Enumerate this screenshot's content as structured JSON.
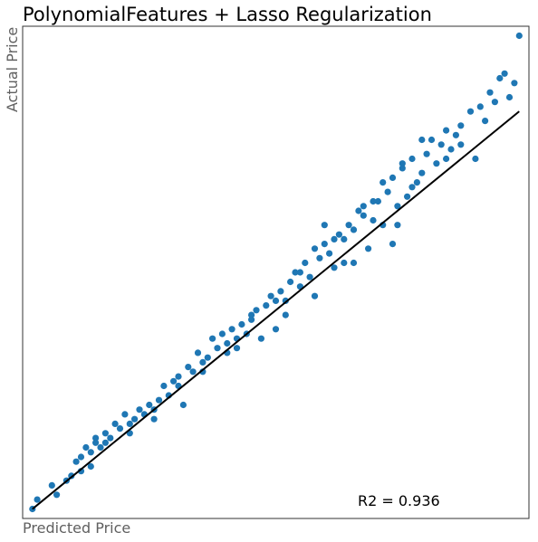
{
  "chart_data": {
    "type": "scatter",
    "title": "PolynomialFeatures + Lasso Regularization",
    "xlabel": "Predicted Price",
    "ylabel": "Actual Price",
    "annotation": "R2 = 0.936",
    "xlim": [
      -0.02,
      1.02
    ],
    "ylim": [
      -0.02,
      1.02
    ],
    "grid": false,
    "colors": {
      "points": "#1f77b4",
      "fit_line": "#000000"
    },
    "fit_line": {
      "x": [
        0.0,
        1.0
      ],
      "y": [
        0.0,
        0.84
      ]
    },
    "points": {
      "x": [
        0.0,
        0.01,
        0.04,
        0.05,
        0.07,
        0.08,
        0.09,
        0.1,
        0.1,
        0.11,
        0.12,
        0.12,
        0.13,
        0.13,
        0.14,
        0.15,
        0.16,
        0.17,
        0.18,
        0.19,
        0.2,
        0.21,
        0.22,
        0.23,
        0.24,
        0.25,
        0.26,
        0.27,
        0.28,
        0.29,
        0.3,
        0.31,
        0.32,
        0.33,
        0.34,
        0.35,
        0.36,
        0.37,
        0.38,
        0.39,
        0.4,
        0.41,
        0.42,
        0.43,
        0.44,
        0.45,
        0.46,
        0.47,
        0.48,
        0.49,
        0.5,
        0.51,
        0.52,
        0.53,
        0.54,
        0.55,
        0.56,
        0.57,
        0.58,
        0.59,
        0.6,
        0.61,
        0.62,
        0.63,
        0.64,
        0.65,
        0.66,
        0.67,
        0.68,
        0.69,
        0.7,
        0.71,
        0.72,
        0.73,
        0.74,
        0.75,
        0.76,
        0.77,
        0.78,
        0.79,
        0.8,
        0.81,
        0.82,
        0.83,
        0.84,
        0.85,
        0.86,
        0.87,
        0.88,
        0.9,
        0.91,
        0.92,
        0.93,
        0.94,
        0.95,
        0.96,
        0.97,
        0.98,
        0.99,
        1.0,
        0.5,
        0.52,
        0.55,
        0.6,
        0.64,
        0.68,
        0.72,
        0.76,
        0.8,
        0.85,
        0.88,
        0.78,
        0.7,
        0.62,
        0.45,
        0.35,
        0.3,
        0.25,
        0.2,
        0.15,
        0.4,
        0.42,
        0.58,
        0.66,
        0.75,
        0.74
      ],
      "y": [
        0.0,
        0.02,
        0.05,
        0.03,
        0.06,
        0.07,
        0.1,
        0.08,
        0.11,
        0.13,
        0.09,
        0.12,
        0.14,
        0.15,
        0.13,
        0.16,
        0.15,
        0.18,
        0.17,
        0.2,
        0.16,
        0.19,
        0.21,
        0.2,
        0.22,
        0.19,
        0.23,
        0.26,
        0.24,
        0.27,
        0.28,
        0.22,
        0.3,
        0.29,
        0.33,
        0.31,
        0.32,
        0.36,
        0.34,
        0.37,
        0.35,
        0.38,
        0.34,
        0.39,
        0.37,
        0.4,
        0.42,
        0.36,
        0.43,
        0.45,
        0.44,
        0.46,
        0.41,
        0.48,
        0.5,
        0.47,
        0.52,
        0.49,
        0.55,
        0.53,
        0.56,
        0.54,
        0.51,
        0.58,
        0.57,
        0.6,
        0.59,
        0.63,
        0.62,
        0.55,
        0.61,
        0.65,
        0.6,
        0.67,
        0.7,
        0.64,
        0.72,
        0.66,
        0.74,
        0.69,
        0.71,
        0.75,
        0.78,
        0.73,
        0.77,
        0.8,
        0.76,
        0.79,
        0.81,
        0.84,
        0.74,
        0.85,
        0.82,
        0.88,
        0.86,
        0.91,
        0.92,
        0.87,
        0.9,
        1.0,
        0.38,
        0.44,
        0.5,
        0.6,
        0.52,
        0.64,
        0.69,
        0.73,
        0.78,
        0.74,
        0.77,
        0.68,
        0.65,
        0.57,
        0.41,
        0.29,
        0.26,
        0.21,
        0.18,
        0.14,
        0.33,
        0.36,
        0.45,
        0.52,
        0.6,
        0.56
      ]
    }
  }
}
